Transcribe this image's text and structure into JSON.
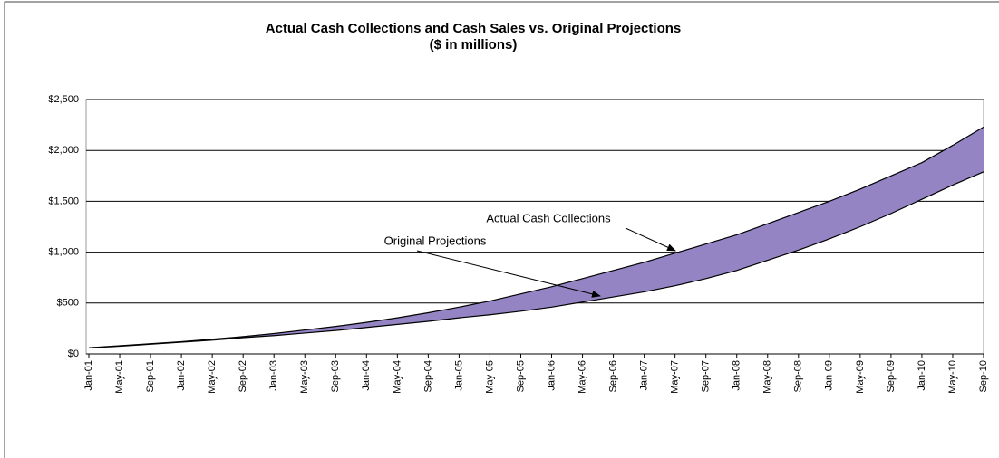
{
  "chart_data": {
    "type": "band",
    "title": "Actual Cash Collections and Cash Sales vs. Original Projections",
    "subtitle": "($ in millions)",
    "categories": [
      "Jan-01",
      "May-01",
      "Sep-01",
      "Jan-02",
      "May-02",
      "Sep-02",
      "Jan-03",
      "May-03",
      "Sep-03",
      "Jan-04",
      "May-04",
      "Sep-04",
      "Jan-05",
      "May-05",
      "Sep-05",
      "Jan-06",
      "May-06",
      "Sep-06",
      "Jan-07",
      "May-07",
      "Sep-07",
      "Jan-08",
      "May-08",
      "Sep-08",
      "Jan-09",
      "May-09",
      "Sep-09",
      "Jan-10",
      "May-10",
      "Sep-10"
    ],
    "series": [
      {
        "name": "Actual Cash Collections",
        "color": "#000000",
        "values": [
          60,
          80,
          100,
          120,
          145,
          170,
          200,
          235,
          270,
          310,
          355,
          405,
          460,
          520,
          590,
          660,
          740,
          820,
          900,
          990,
          1080,
          1170,
          1280,
          1390,
          1500,
          1620,
          1750,
          1880,
          2050,
          2230
        ]
      },
      {
        "name": "Original Projections",
        "color": "#000000",
        "values": [
          60,
          75,
          95,
          115,
          135,
          160,
          180,
          205,
          230,
          260,
          290,
          320,
          355,
          385,
          420,
          460,
          510,
          560,
          610,
          670,
          740,
          820,
          920,
          1020,
          1130,
          1250,
          1380,
          1520,
          1660,
          1790
        ]
      }
    ],
    "fill_color": "#9484c4",
    "ylim": [
      0,
      2500
    ],
    "yticks": [
      {
        "value": 0,
        "label": "$0"
      },
      {
        "value": 500,
        "label": "$500"
      },
      {
        "value": 1000,
        "label": "$1,000"
      },
      {
        "value": 1500,
        "label": "$1,500"
      },
      {
        "value": 2000,
        "label": "$2,000"
      },
      {
        "value": 2500,
        "label": "$2,500"
      }
    ],
    "grid": true
  }
}
